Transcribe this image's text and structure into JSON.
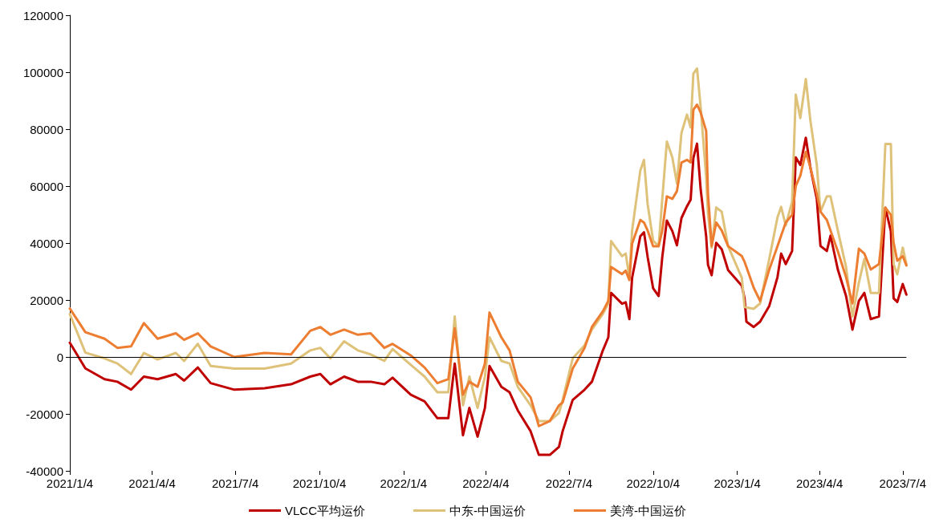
{
  "chart_data": {
    "type": "line",
    "x": [
      "2021-01-04",
      "2021-01-21",
      "2021-02-11",
      "2021-02-25",
      "2021-03-12",
      "2021-03-26",
      "2021-04-10",
      "2021-04-30",
      "2021-05-09",
      "2021-05-24",
      "2021-06-07",
      "2021-07-03",
      "2021-08-05",
      "2021-09-03",
      "2021-09-24",
      "2021-10-05",
      "2021-10-16",
      "2021-10-31",
      "2021-11-15",
      "2021-11-29",
      "2021-12-14",
      "2021-12-23",
      "2022-01-12",
      "2022-01-27",
      "2022-02-10",
      "2022-02-22",
      "2022-03-01",
      "2022-03-10",
      "2022-03-17",
      "2022-03-26",
      "2022-04-03",
      "2022-04-08",
      "2022-04-21",
      "2022-04-30",
      "2022-05-09",
      "2022-05-23",
      "2022-06-01",
      "2022-06-13",
      "2022-06-23",
      "2022-06-27",
      "2022-07-08",
      "2022-07-21",
      "2022-07-29",
      "2022-08-10",
      "2022-08-16",
      "2022-08-19",
      "2022-08-31",
      "2022-09-04",
      "2022-09-08",
      "2022-09-11",
      "2022-09-20",
      "2022-09-24",
      "2022-09-28",
      "2022-10-04",
      "2022-10-10",
      "2022-10-14",
      "2022-10-19",
      "2022-10-25",
      "2022-10-30",
      "2022-11-04",
      "2022-11-10",
      "2022-11-14",
      "2022-11-17",
      "2022-11-21",
      "2022-11-25",
      "2022-12-01",
      "2022-12-03",
      "2022-12-07",
      "2022-12-12",
      "2022-12-18",
      "2022-12-25",
      "2023-01-09",
      "2023-01-12",
      "2023-01-14",
      "2023-01-22",
      "2023-01-29",
      "2023-02-08",
      "2023-02-17",
      "2023-02-21",
      "2023-02-26",
      "2023-03-05",
      "2023-03-09",
      "2023-03-14",
      "2023-03-20",
      "2023-03-25",
      "2023-04-01",
      "2023-04-05",
      "2023-04-12",
      "2023-04-16",
      "2023-04-24",
      "2023-05-03",
      "2023-05-10",
      "2023-05-17",
      "2023-05-23",
      "2023-05-30",
      "2023-06-08",
      "2023-06-15",
      "2023-06-21",
      "2023-06-24",
      "2023-06-28",
      "2023-07-04",
      "2023-07-08"
    ],
    "series": [
      {
        "name": "VLCC平均运价",
        "color": "#c00000",
        "values": [
          5000,
          -4000,
          -7800,
          -8700,
          -11500,
          -6900,
          -7800,
          -6000,
          -8300,
          -3700,
          -9200,
          -11500,
          -11000,
          -9600,
          -6900,
          -6000,
          -9600,
          -6900,
          -8700,
          -8700,
          -9600,
          -7300,
          -13300,
          -15600,
          -21500,
          -21500,
          -2300,
          -27500,
          -17900,
          -28000,
          -17900,
          -3200,
          -10500,
          -12400,
          -18800,
          -26100,
          -34400,
          -34400,
          -31600,
          -26100,
          -15100,
          -11500,
          -8700,
          2300,
          6900,
          22500,
          18700,
          19200,
          13300,
          27800,
          42400,
          43800,
          35100,
          24100,
          21400,
          35100,
          47900,
          44200,
          39200,
          48800,
          52900,
          55200,
          69900,
          74900,
          58800,
          42400,
          32300,
          28700,
          40100,
          37800,
          30500,
          25000,
          20600,
          12400,
          10500,
          12400,
          17900,
          28000,
          36300,
          32600,
          37200,
          70100,
          67400,
          77000,
          66500,
          55500,
          39000,
          37200,
          42600,
          30700,
          21400,
          9600,
          19700,
          22500,
          13300,
          14200,
          52400,
          44200,
          20600,
          19300,
          25600,
          21900
        ]
      },
      {
        "name": "中东-中国运价",
        "color": "#dfc27a",
        "values": [
          15000,
          1500,
          -500,
          -2300,
          -6000,
          1400,
          -900,
          1400,
          -1400,
          4600,
          -3200,
          -4100,
          -4100,
          -2300,
          2300,
          3200,
          -500,
          5500,
          2300,
          900,
          -1400,
          2800,
          -2800,
          -6900,
          -12400,
          -12400,
          14200,
          -17000,
          -6900,
          -17900,
          -6900,
          6900,
          -1400,
          -2300,
          -10500,
          -17000,
          -22500,
          -22500,
          -19700,
          -15100,
          -500,
          4100,
          9600,
          15100,
          18800,
          40700,
          35400,
          36300,
          27800,
          44400,
          65500,
          69200,
          53600,
          40800,
          38900,
          55500,
          75600,
          70100,
          60900,
          78700,
          85100,
          80600,
          99500,
          101300,
          87700,
          63100,
          50300,
          38400,
          52500,
          51000,
          38900,
          27800,
          17600,
          17400,
          16900,
          18800,
          34400,
          49000,
          52700,
          46200,
          54500,
          92100,
          83900,
          97600,
          83000,
          67400,
          51000,
          56400,
          56400,
          44400,
          31600,
          14200,
          26100,
          34400,
          22500,
          22500,
          74800,
          74800,
          32600,
          29000,
          38400,
          32600
        ]
      },
      {
        "name": "美湾-中国运价",
        "color": "#ed7d31",
        "values": [
          17000,
          8700,
          6400,
          3200,
          3700,
          11900,
          6400,
          8300,
          6000,
          8300,
          3700,
          0,
          1400,
          900,
          9200,
          10500,
          7800,
          9600,
          7800,
          8300,
          3200,
          4600,
          500,
          -3700,
          -9200,
          -7800,
          10100,
          -13300,
          -8700,
          -10500,
          -2300,
          15600,
          6900,
          2300,
          -8700,
          -14200,
          -24300,
          -22500,
          -17000,
          -16000,
          -4100,
          3200,
          10500,
          16000,
          19700,
          31600,
          29100,
          30300,
          27000,
          39800,
          48100,
          47200,
          44400,
          38900,
          38900,
          44400,
          56400,
          55500,
          58200,
          68300,
          69200,
          68300,
          86800,
          88600,
          85800,
          79400,
          57300,
          39000,
          47200,
          44400,
          38900,
          35400,
          33400,
          31600,
          24300,
          19700,
          30700,
          38900,
          42600,
          47200,
          49900,
          60000,
          63700,
          72000,
          66500,
          57300,
          51000,
          48100,
          44400,
          37100,
          28000,
          18800,
          38000,
          36300,
          30700,
          32600,
          52400,
          49900,
          40200,
          33800,
          35400,
          32100
        ]
      }
    ],
    "xlim": [
      "2021-01-04",
      "2023-07-08"
    ],
    "xticks": [
      {
        "value": "2021-01-04",
        "label": "2021/1/4"
      },
      {
        "value": "2021-04-04",
        "label": "2021/4/4"
      },
      {
        "value": "2021-07-04",
        "label": "2021/7/4"
      },
      {
        "value": "2021-10-04",
        "label": "2021/10/4"
      },
      {
        "value": "2022-01-04",
        "label": "2022/1/4"
      },
      {
        "value": "2022-04-04",
        "label": "2022/4/4"
      },
      {
        "value": "2022-07-04",
        "label": "2022/7/4"
      },
      {
        "value": "2022-10-04",
        "label": "2022/10/4"
      },
      {
        "value": "2023-01-04",
        "label": "2023/1/4"
      },
      {
        "value": "2023-04-04",
        "label": "2023/4/4"
      },
      {
        "value": "2023-07-04",
        "label": "2023/7/4"
      }
    ],
    "ylim": [
      -40000,
      120000
    ],
    "yticks": [
      -40000,
      -20000,
      0,
      20000,
      40000,
      60000,
      80000,
      100000,
      120000
    ],
    "ref_lines": [
      {
        "axis": "y",
        "value": 0,
        "color": "#000000"
      }
    ],
    "grid": false,
    "legend": "bottom",
    "marker": "none",
    "line_style": "solid"
  }
}
